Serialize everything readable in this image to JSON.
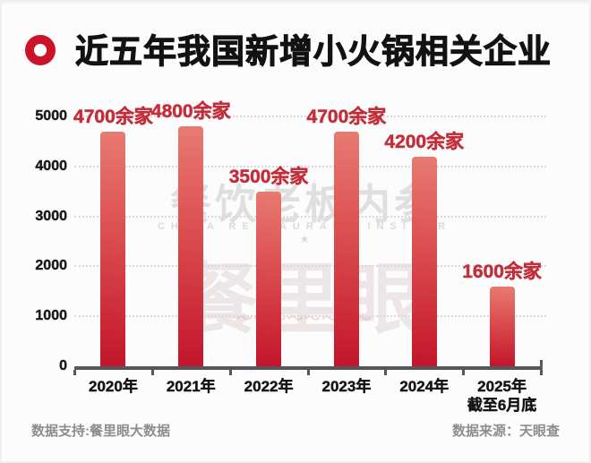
{
  "header": {
    "title": "近五年我国新增小火锅相关企业"
  },
  "watermark": {
    "brand_cn": "餐饮老板内参",
    "brand_en": "CHINA RESTAURANT INSIDER",
    "star": "★",
    "product": "餐里眼",
    "squiggle": "〜〜〜〜〜〜〜〜"
  },
  "footer": {
    "support": "数据支持:餐里眼大数据",
    "source": "数据来源：天眼查"
  },
  "chart_data": {
    "type": "bar",
    "title": "近五年我国新增小火锅相关企业",
    "categories": [
      "2020年",
      "2021年",
      "2022年",
      "2023年",
      "2024年",
      "2025年"
    ],
    "category_sublabels": [
      "",
      "",
      "",
      "",
      "",
      "截至6月底"
    ],
    "values": [
      4700,
      4800,
      3500,
      4700,
      4200,
      1600
    ],
    "value_labels": [
      "4700余家",
      "4800余家",
      "3500余家",
      "4700余家",
      "4200余家",
      "1600余家"
    ],
    "xlabel": "",
    "ylabel": "",
    "ylim": [
      0,
      5000
    ],
    "yticks": [
      0,
      1000,
      2000,
      3000,
      4000,
      5000
    ],
    "grid": "horizontal-dotted",
    "legend": "none",
    "colors": {
      "bar_top": "#e87a72",
      "bar_mid": "#dd5453",
      "bar_bottom": "#c3152b",
      "value_label": "#c22f3a",
      "axis": "#56575a",
      "tick_label": "#1a1a1a",
      "gridline": "#d9d9d9"
    }
  }
}
